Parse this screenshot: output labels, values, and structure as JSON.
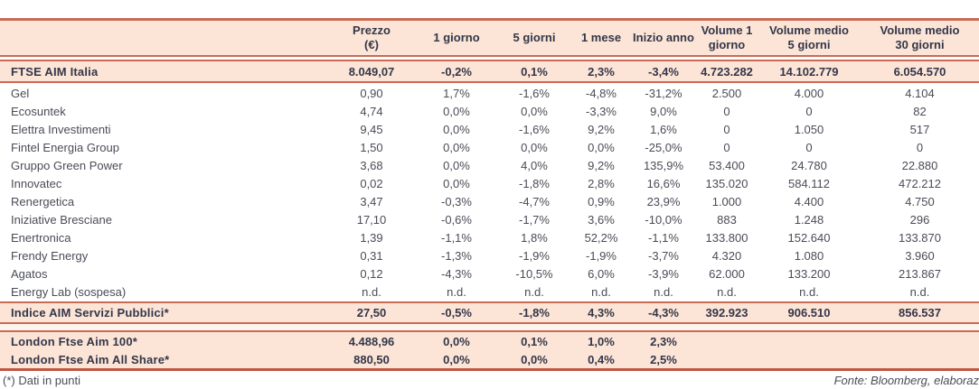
{
  "colors": {
    "peach": "#fce5d6",
    "line_red": "#c96a55",
    "line_red_dark": "#bf5744",
    "text_dark": "#33364a",
    "text_body": "#4a4c58"
  },
  "footer": {
    "note": "(*) Dati in punti",
    "source": "Fonte: Bloomberg, elaboraz"
  },
  "table": {
    "header": [
      {
        "l1": "",
        "l2": ""
      },
      {
        "l1": "Prezzo",
        "l2": "(€)"
      },
      {
        "l1": "1 giorno",
        "l2": ""
      },
      {
        "l1": "5 giorni",
        "l2": ""
      },
      {
        "l1": "1 mese",
        "l2": ""
      },
      {
        "l1": "Inizio anno",
        "l2": ""
      },
      {
        "l1": "Volume 1",
        "l2": "giorno"
      },
      {
        "l1": "Volume medio",
        "l2": "5 giorni"
      },
      {
        "l1": "Volume medio",
        "l2": "30 giorni"
      }
    ],
    "index_row": {
      "name": "FTSE AIM Italia",
      "values": [
        "8.049,07",
        "-0,2%",
        "0,1%",
        "2,3%",
        "-3,4%",
        "4.723.282",
        "14.102.779",
        "6.054.570"
      ]
    },
    "stock_rows": [
      {
        "name": "Gel",
        "values": [
          "0,90",
          "1,7%",
          "-1,6%",
          "-4,8%",
          "-31,2%",
          "2.500",
          "4.000",
          "4.104"
        ]
      },
      {
        "name": "Ecosuntek",
        "values": [
          "4,74",
          "0,0%",
          "0,0%",
          "-3,3%",
          "9,0%",
          "0",
          "0",
          "82"
        ]
      },
      {
        "name": "Elettra Investimenti",
        "values": [
          "9,45",
          "0,0%",
          "-1,6%",
          "9,2%",
          "1,6%",
          "0",
          "1.050",
          "517"
        ]
      },
      {
        "name": "Fintel Energia Group",
        "values": [
          "1,50",
          "0,0%",
          "0,0%",
          "0,0%",
          "-25,0%",
          "0",
          "0",
          "0"
        ]
      },
      {
        "name": "Gruppo Green Power",
        "values": [
          "3,68",
          "0,0%",
          "4,0%",
          "9,2%",
          "135,9%",
          "53.400",
          "24.780",
          "22.880"
        ]
      },
      {
        "name": "Innovatec",
        "values": [
          "0,02",
          "0,0%",
          "-1,8%",
          "2,8%",
          "16,6%",
          "135.020",
          "584.112",
          "472.212"
        ]
      },
      {
        "name": "Renergetica",
        "values": [
          "3,47",
          "-0,3%",
          "-4,7%",
          "0,9%",
          "23,9%",
          "1.000",
          "4.400",
          "4.750"
        ]
      },
      {
        "name": "Iniziative Bresciane",
        "values": [
          "17,10",
          "-0,6%",
          "-1,7%",
          "3,6%",
          "-10,0%",
          "883",
          "1.248",
          "296"
        ]
      },
      {
        "name": "Enertronica",
        "values": [
          "1,39",
          "-1,1%",
          "1,8%",
          "52,2%",
          "-1,1%",
          "133.800",
          "152.640",
          "133.870"
        ]
      },
      {
        "name": "Frendy Energy",
        "values": [
          "0,31",
          "-1,3%",
          "-1,9%",
          "-1,9%",
          "-3,7%",
          "4.320",
          "1.080",
          "3.960"
        ]
      },
      {
        "name": "Agatos",
        "values": [
          "0,12",
          "-4,3%",
          "-10,5%",
          "6,0%",
          "-3,9%",
          "62.000",
          "133.200",
          "213.867"
        ]
      },
      {
        "name": "Energy Lab (sospesa)",
        "values": [
          "n.d.",
          "n.d.",
          "n.d.",
          "n.d.",
          "n.d.",
          "n.d.",
          "n.d.",
          "n.d."
        ]
      }
    ],
    "aggregate_row": {
      "name": "Indice AIM Servizi Pubblici*",
      "values": [
        "27,50",
        "-0,5%",
        "-1,8%",
        "4,3%",
        "-4,3%",
        "392.923",
        "906.510",
        "856.537"
      ]
    },
    "london_rows": [
      {
        "name": "London Ftse Aim 100*",
        "values": [
          "4.488,96",
          "0,0%",
          "0,1%",
          "1,0%",
          "2,3%",
          "",
          "",
          ""
        ]
      },
      {
        "name": "London Ftse Aim All Share*",
        "values": [
          "880,50",
          "0,0%",
          "0,0%",
          "0,4%",
          "2,5%",
          "",
          "",
          ""
        ]
      }
    ]
  }
}
